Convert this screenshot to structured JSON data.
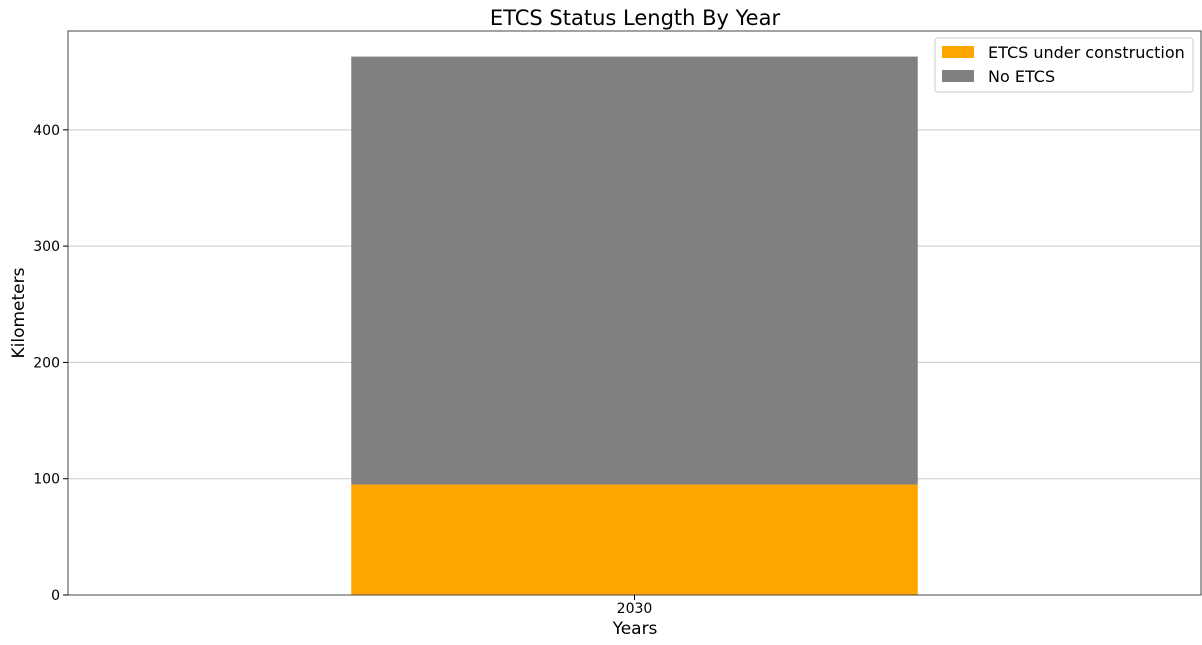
{
  "chart_data": {
    "type": "bar",
    "stacked": true,
    "title": "ETCS Status Length By Year",
    "xlabel": "Years",
    "ylabel": "Kilometers",
    "categories": [
      "2030"
    ],
    "ylim": [
      0,
      485
    ],
    "yticks": [
      0,
      100,
      200,
      300,
      400
    ],
    "grid": "y",
    "legend_position": "top-right",
    "series": [
      {
        "name": "ETCS under construction",
        "values": [
          95
        ],
        "color": "#ffa500"
      },
      {
        "name": "No ETCS",
        "values": [
          368
        ],
        "color": "#808080"
      }
    ]
  }
}
